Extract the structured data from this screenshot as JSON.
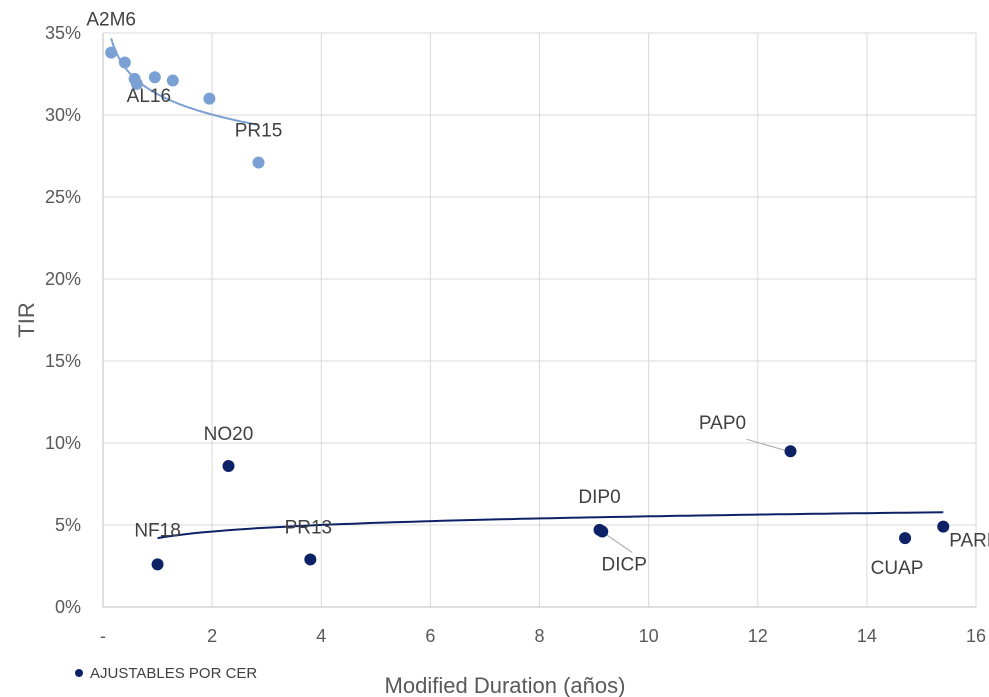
{
  "chart_data": {
    "type": "scatter",
    "xlabel": "Modified Duration (años)",
    "ylabel": "TIR",
    "xlim": [
      0,
      16
    ],
    "ylim": [
      0,
      0.35
    ],
    "x_ticks": [
      0,
      2,
      4,
      6,
      8,
      10,
      12,
      14,
      16
    ],
    "x_tick_labels": [
      "-",
      "2",
      "4",
      "6",
      "8",
      "10",
      "12",
      "14",
      "16"
    ],
    "y_ticks": [
      0,
      0.05,
      0.1,
      0.15,
      0.2,
      0.25,
      0.3,
      0.35
    ],
    "y_tick_labels": [
      "0%",
      "5%",
      "10%",
      "15%",
      "20%",
      "25%",
      "30%",
      "35%"
    ],
    "grid": true,
    "legend_position": "bottom-left",
    "series": [
      {
        "name": "",
        "color": "#7ba0d4",
        "points": [
          {
            "x": 0.15,
            "y": 0.338,
            "label": "A2M6"
          },
          {
            "x": 0.4,
            "y": 0.332,
            "label": ""
          },
          {
            "x": 0.58,
            "y": 0.322,
            "label": ""
          },
          {
            "x": 0.62,
            "y": 0.319,
            "label": "AL16"
          },
          {
            "x": 0.95,
            "y": 0.323,
            "label": ""
          },
          {
            "x": 1.28,
            "y": 0.321,
            "label": ""
          },
          {
            "x": 1.95,
            "y": 0.31,
            "label": ""
          },
          {
            "x": 2.85,
            "y": 0.271,
            "label": "PR15"
          }
        ],
        "trendline": {
          "type": "log",
          "x_range": [
            0.15,
            2.85
          ]
        }
      },
      {
        "name": "AJUSTABLES POR CER",
        "color": "#0d2266",
        "points": [
          {
            "x": 1.0,
            "y": 0.026,
            "label": "NF18"
          },
          {
            "x": 2.3,
            "y": 0.086,
            "label": "NO20"
          },
          {
            "x": 3.8,
            "y": 0.029,
            "label": "PR13"
          },
          {
            "x": 9.1,
            "y": 0.047,
            "label": "DIP0"
          },
          {
            "x": 9.15,
            "y": 0.046,
            "label": "DICP"
          },
          {
            "x": 12.6,
            "y": 0.095,
            "label": "PAP0"
          },
          {
            "x": 14.7,
            "y": 0.042,
            "label": "CUAP"
          },
          {
            "x": 15.4,
            "y": 0.049,
            "label": "PARP"
          }
        ],
        "trendline": {
          "type": "log",
          "x_range": [
            1.0,
            15.4
          ]
        }
      }
    ]
  }
}
